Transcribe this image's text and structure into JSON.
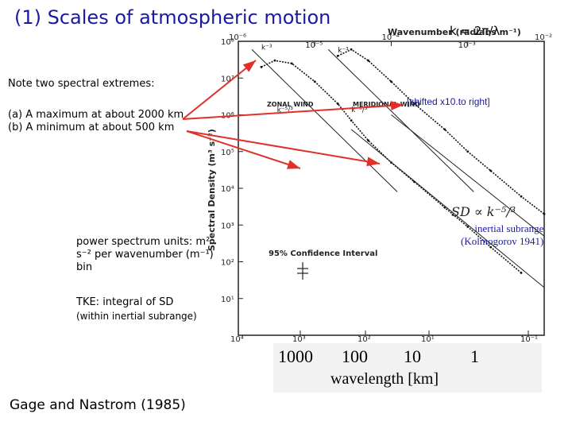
{
  "slide": {
    "title": "(1) Scales of atmospheric motion",
    "k_definition": "k = 2π/λ",
    "note_heading": "Note two spectral extremes:",
    "note_a": "(a) A maximum at about 2000 km",
    "note_b": "(b) A minimum at about 500 km",
    "shifted_note": "[shifted x10.to right]",
    "power_spectrum": "power spectrum units: m² s⁻² per wavenumber (m⁻¹) bin",
    "tke_line1": "TKE: integral of SD",
    "tke_line2": "(within inertial subrange)",
    "inertial_line1": "inertial subrange",
    "inertial_line2": "(Kolmogorov 1941)",
    "credit": "Gage and Nastrom (1985)",
    "arrow_color": "#e0302a",
    "accent_color": "#1a1aa0"
  },
  "chart_data": {
    "type": "line",
    "title": "",
    "xlabel_top": "Wavenumber (radians m⁻¹)",
    "xlabel_bottom": "wavelength [km]",
    "ylabel": "Spectral Density (m³ s⁻²)",
    "x_scale": "log",
    "y_scale": "log",
    "xlim": [
      1e-06,
      0.01
    ],
    "ylim": [
      1.0,
      100000000.0
    ],
    "top_ticks": [
      "10⁻⁶",
      "10⁻⁵",
      "10⁻⁴",
      "10⁻³",
      "10⁻²"
    ],
    "bottom_ticks": [
      "10⁴",
      "10³",
      "10²",
      "10¹",
      "10⁻¹"
    ],
    "y_ticks": [
      "10⁸",
      "10⁷",
      "10⁶",
      "10⁵",
      "10⁴",
      "10³",
      "10²",
      "10¹"
    ],
    "wavelength_ticks": [
      "1000",
      "100",
      "10",
      "1"
    ],
    "series": [
      {
        "name": "ZONAL WIND",
        "x": [
          2e-06,
          3e-06,
          5e-06,
          1e-05,
          2e-05,
          3e-05,
          5e-05,
          0.0001,
          0.0002,
          0.0005,
          0.001,
          0.002,
          0.005
        ],
        "y": [
          20000000,
          30000000,
          25000000,
          8000000,
          2000000,
          700000,
          200000,
          50000,
          15000,
          3000,
          900,
          250,
          50
        ]
      },
      {
        "name": "MERIDIONAL WIND",
        "x": [
          2e-05,
          3e-05,
          5e-05,
          0.0001,
          0.0002,
          0.0005,
          0.001,
          0.002,
          0.005,
          0.01
        ],
        "y": [
          40000000,
          60000000,
          30000000,
          8000000,
          2000000,
          400000,
          100000,
          30000,
          6000,
          2000
        ]
      }
    ],
    "reference_slopes": [
      "k⁻³",
      "k⁻³",
      "k⁻⁵/³",
      "k⁻⁵/³"
    ],
    "annotations": [
      "SD ∝ k⁻⁵/³",
      "95% Confidence Interval",
      "ZONAL WIND",
      "MERIDIONAL WIND"
    ]
  }
}
